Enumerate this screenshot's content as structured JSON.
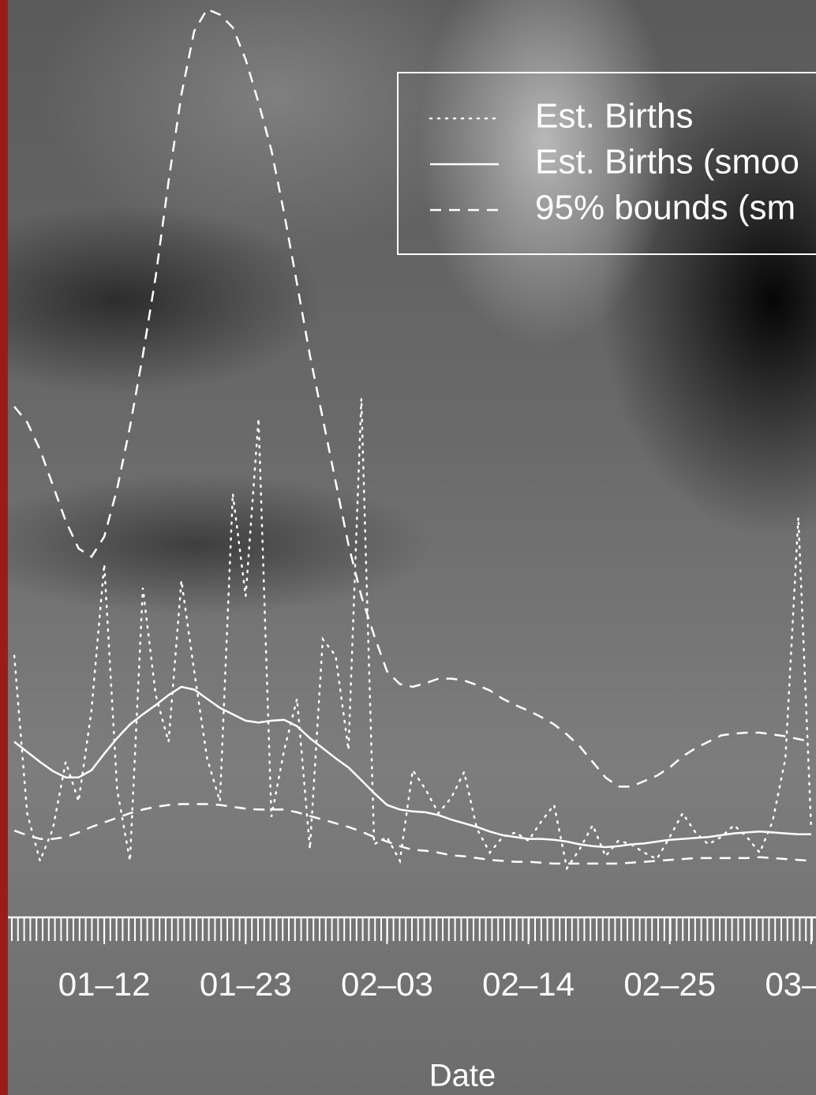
{
  "chart_data": {
    "type": "line",
    "x": [
      0,
      1,
      2,
      3,
      4,
      5,
      6,
      7,
      8,
      9,
      10,
      11,
      12,
      13,
      14,
      15,
      16,
      17,
      18,
      19,
      20,
      21,
      22,
      23,
      24,
      25,
      26,
      27,
      28,
      29,
      30,
      31,
      32,
      33,
      34,
      35,
      36,
      37,
      38,
      39,
      40,
      41,
      42,
      43,
      44,
      45,
      46,
      47,
      48,
      49,
      50,
      51,
      52,
      53,
      54,
      55,
      56,
      57,
      58,
      59,
      60,
      61,
      62
    ],
    "xlim": [
      -0.5,
      62.5
    ],
    "xticks": [
      {
        "value": 7,
        "label": "01–12"
      },
      {
        "value": 18,
        "label": "01–23"
      },
      {
        "value": 29,
        "label": "02–03"
      },
      {
        "value": 40,
        "label": "02–14"
      },
      {
        "value": 51,
        "label": "02–25"
      },
      {
        "value": 62,
        "label": "03–"
      }
    ],
    "ylim": [
      0,
      100
    ],
    "x_label": "Date",
    "legend": "top-right",
    "series": [
      {
        "name": "Est. Births",
        "color": "#ffffff",
        "linestyle": "dotted",
        "values": [
          28.4,
          11.2,
          6.0,
          9.5,
          16.8,
          12.5,
          22.4,
          38.4,
          13.8,
          6.0,
          35.8,
          24.1,
          19.0,
          36.6,
          26.7,
          17.2,
          12.5,
          46.1,
          34.9,
          54.3,
          10.8,
          18.1,
          23.7,
          7.3,
          30.2,
          28.4,
          18.1,
          56.5,
          7.8,
          8.6,
          6.0,
          15.9,
          13.8,
          11.2,
          12.9,
          15.7,
          9.5,
          6.9,
          8.6,
          9.1,
          8.2,
          10.3,
          12.1,
          5.2,
          7.3,
          9.9,
          6.5,
          8.2,
          7.8,
          6.9,
          6.2,
          8.6,
          11.2,
          9.1,
          7.8,
          8.6,
          9.9,
          8.6,
          6.9,
          10.3,
          17.2,
          43.5,
          9.5
        ]
      },
      {
        "name": "Est. Births (smoo",
        "color": "#ffffff",
        "linestyle": "solid",
        "values": [
          19.0,
          17.9,
          16.8,
          15.8,
          15.1,
          15.1,
          15.9,
          17.7,
          19.4,
          20.9,
          22.0,
          23.0,
          24.1,
          25.0,
          24.7,
          23.7,
          22.7,
          22.0,
          21.3,
          21.1,
          21.3,
          21.4,
          20.7,
          19.4,
          18.3,
          17.2,
          16.2,
          14.8,
          13.4,
          12.1,
          11.6,
          11.4,
          11.3,
          11.0,
          10.5,
          10.1,
          9.7,
          9.2,
          8.8,
          8.6,
          8.4,
          8.4,
          8.3,
          8.1,
          7.8,
          7.6,
          7.5,
          7.6,
          7.8,
          7.9,
          8.1,
          8.3,
          8.4,
          8.5,
          8.6,
          8.8,
          9.0,
          9.1,
          9.2,
          9.1,
          9.0,
          8.9,
          8.9
        ]
      },
      {
        "name": "95% bounds (sm",
        "color": "#ffffff",
        "linestyle": "dashed",
        "values": [
          55.6,
          53.9,
          50.9,
          47.0,
          43.1,
          40.1,
          39.2,
          41.4,
          46.6,
          53.4,
          61.2,
          69.8,
          80.2,
          89.7,
          96.6,
          99.0,
          98.4,
          97.0,
          93.5,
          88.8,
          83.6,
          76.7,
          69.0,
          61.2,
          54.3,
          47.4,
          40.5,
          34.9,
          30.6,
          26.7,
          25.3,
          25.0,
          25.4,
          25.9,
          25.9,
          25.7,
          25.2,
          24.6,
          23.7,
          23.0,
          22.4,
          21.7,
          20.9,
          19.8,
          18.5,
          16.8,
          15.1,
          14.1,
          14.1,
          14.7,
          15.3,
          16.2,
          17.4,
          18.3,
          19.0,
          19.7,
          19.9,
          20.0,
          20.0,
          19.8,
          19.6,
          19.3,
          19.0
        ]
      },
      {
        "color": "#ffffff",
        "linestyle": "dashed",
        "values": [
          9.3,
          8.8,
          8.4,
          8.4,
          8.6,
          9.1,
          9.7,
          10.2,
          10.7,
          11.2,
          11.6,
          11.9,
          12.1,
          12.2,
          12.2,
          12.2,
          12.1,
          11.9,
          11.7,
          11.6,
          11.6,
          11.6,
          11.3,
          10.9,
          10.5,
          10.1,
          9.7,
          9.2,
          8.6,
          8.1,
          7.6,
          7.2,
          7.1,
          6.9,
          6.6,
          6.5,
          6.3,
          6.1,
          6.0,
          5.9,
          5.9,
          5.8,
          5.7,
          5.7,
          5.7,
          5.7,
          5.7,
          5.7,
          5.8,
          5.9,
          6.0,
          6.1,
          6.2,
          6.3,
          6.3,
          6.3,
          6.3,
          6.3,
          6.4,
          6.3,
          6.2,
          6.1,
          6.0
        ]
      }
    ]
  }
}
